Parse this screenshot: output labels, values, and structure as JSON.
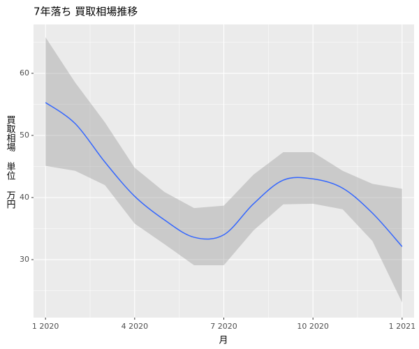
{
  "chart_data": {
    "type": "smooth",
    "title": "7年落ち 買取相場推移",
    "xlabel": "月",
    "ylabel": "買取相場 単位 万円",
    "x": [
      "2020-01",
      "2020-02",
      "2020-03",
      "2020-04",
      "2020-05",
      "2020-06",
      "2020-07",
      "2020-08",
      "2020-09",
      "2020-10",
      "2020-11",
      "2020-12",
      "2021-01"
    ],
    "series": [
      {
        "color": "#3366ff",
        "band_color": "#999999",
        "values": [
          55.3,
          51.9,
          45.7,
          40.2,
          36.4,
          33.6,
          34.0,
          39.0,
          42.8,
          43.0,
          41.5,
          37.5,
          32.1
        ],
        "lower": [
          45.1,
          44.3,
          42.0,
          35.8,
          32.5,
          29.1,
          29.1,
          34.7,
          38.9,
          39.0,
          38.1,
          33.0,
          23.1
        ],
        "upper": [
          65.8,
          58.5,
          52.1,
          44.8,
          40.9,
          38.3,
          38.7,
          43.7,
          47.3,
          47.3,
          44.3,
          42.2,
          41.4
        ]
      }
    ],
    "xlim": [
      "2020-01",
      "2021-01"
    ],
    "xticks": [
      {
        "value": "2020-01",
        "label": "1 2020"
      },
      {
        "value": "2020-04",
        "label": "4 2020"
      },
      {
        "value": "2020-07",
        "label": "7 2020"
      },
      {
        "value": "2020-10",
        "label": "10 2020"
      },
      {
        "value": "2021-01",
        "label": "1 2021"
      }
    ],
    "ylim": [
      20.67,
      67.87
    ],
    "yticks": [
      30,
      40,
      50,
      60
    ],
    "grid": true
  }
}
